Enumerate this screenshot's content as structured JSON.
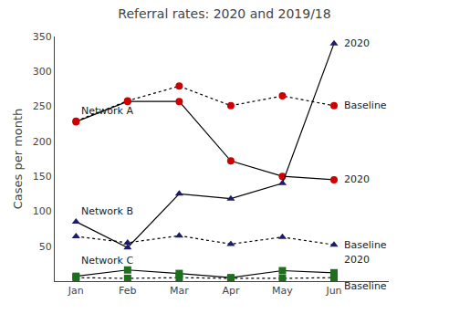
{
  "chart_data": {
    "type": "line",
    "title": "Referral rates: 2020 and 2019/18",
    "categories": [
      "Jan",
      "Feb",
      "Mar",
      "Apr",
      "May",
      "Jun"
    ],
    "ylabel": "Cases per month",
    "ylim": [
      0,
      350
    ],
    "yticks": [
      50,
      100,
      150,
      200,
      250,
      300,
      350
    ],
    "grid": false,
    "series": [
      {
        "color": "#cc0000",
        "marker": "circle",
        "line_style": "solid",
        "values": [
          228,
          257,
          257,
          172,
          150,
          145
        ]
      },
      {
        "color": "#cc0000",
        "marker": "circle",
        "line_style": "dot",
        "values": [
          229,
          258,
          279,
          251,
          265,
          251
        ]
      },
      {
        "color": "#1c1c6e",
        "marker": "triangle-up",
        "line_style": "solid",
        "values": [
          85,
          48,
          125,
          118,
          140,
          340
        ]
      },
      {
        "color": "#1c1c6e",
        "marker": "triangle-up",
        "line_style": "dot",
        "values": [
          64,
          55,
          65,
          53,
          63,
          52
        ]
      },
      {
        "color": "#1e6e1e",
        "marker": "square",
        "line_style": "solid",
        "values": [
          7,
          16,
          11,
          5,
          15,
          12
        ]
      },
      {
        "color": "#1e6e1e",
        "marker": "square",
        "line_style": "dot",
        "values": [
          5,
          4,
          5,
          4,
          4,
          5
        ]
      }
    ],
    "annotations": [
      {
        "text": "Network A",
        "x": "Jan",
        "y": 244
      },
      {
        "text": "Network B",
        "x": "Jan",
        "y": 100
      },
      {
        "text": "Network C",
        "x": "Jan",
        "y": 30
      },
      {
        "text": "2020",
        "x": "Jun",
        "y": 145
      },
      {
        "text": "Baseline",
        "x": "Jun",
        "y": 251
      },
      {
        "text": "2020",
        "x": "Jun",
        "y": 340
      },
      {
        "text": "Baseline",
        "x": "Jun",
        "y": 52
      },
      {
        "text": "2020",
        "x": "Jun",
        "y": 19
      },
      {
        "text": "Baseline",
        "x": "Jun",
        "y": 4
      }
    ]
  }
}
